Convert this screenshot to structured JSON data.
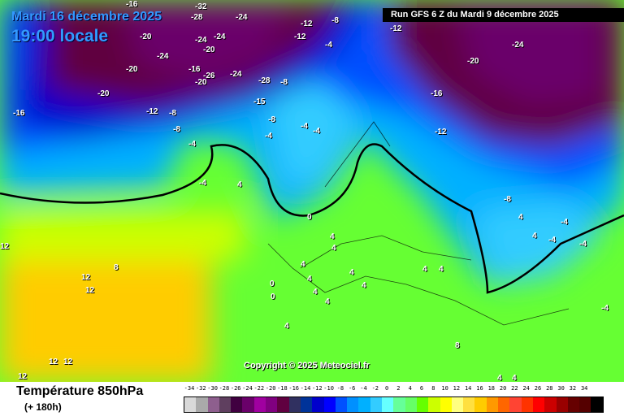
{
  "header": {
    "date": "Mardi 16 décembre 2025",
    "time": "19:00 locale",
    "run": "Run GFS 6 Z du Mardi 9 décembre 2025"
  },
  "copyright": "Copyright © 2025 Meteociel.fr",
  "footer": {
    "title": "Température 850hPa",
    "subtitle": "(+ 180h)"
  },
  "legend": {
    "ticks": [
      "-34",
      "-32",
      "-30",
      "-28",
      "-26",
      "-24",
      "-22",
      "-20",
      "-18",
      "-16",
      "-14",
      "-12",
      "-10",
      "-8",
      "-6",
      "-4",
      "-2",
      "0",
      "2",
      "4",
      "6",
      "8",
      "10",
      "12",
      "14",
      "16",
      "18",
      "20",
      "22",
      "24",
      "26",
      "28",
      "30",
      "32",
      "34"
    ],
    "colors": [
      "#d9d9d9",
      "#aaaaaa",
      "#8e5f8e",
      "#5f3f5f",
      "#400040",
      "#6a006a",
      "#a000a0",
      "#800080",
      "#600040",
      "#303060",
      "#003399",
      "#0000cc",
      "#0000ff",
      "#0050ff",
      "#0090ff",
      "#00b0ff",
      "#33ccff",
      "#66ffff",
      "#66ff99",
      "#66ff66",
      "#66ff00",
      "#ccff00",
      "#ffff00",
      "#ffff80",
      "#ffe040",
      "#ffcc00",
      "#ff9900",
      "#ff6600",
      "#ff4433",
      "#ff3300",
      "#ff0000",
      "#cc0000",
      "#990000",
      "#660000",
      "#550000",
      "#000000"
    ]
  },
  "isotherm_labels": [
    "-16",
    "-28",
    "-32",
    "-24",
    "-20",
    "-24",
    "-24",
    "-20",
    "-12",
    "-8",
    "-12",
    "-24",
    "-20",
    "-16",
    "-20",
    "-26",
    "-24",
    "-28",
    "-8",
    "-20",
    "-12",
    "-16",
    "-12",
    "-8",
    "-8",
    "-15",
    "-8",
    "-4",
    "-4",
    "-4",
    "-4",
    "-12",
    "-16",
    "-20",
    "-24",
    "-8",
    "-4",
    "-4",
    "4",
    "4",
    "4",
    "0",
    "0",
    "4",
    "4",
    "8",
    "12",
    "12",
    "12",
    "12",
    "12",
    "12",
    "4",
    "4",
    "4",
    "0",
    "4",
    "4",
    "4",
    "4",
    "8",
    "4",
    "4",
    "4",
    "4",
    "-4",
    "-4",
    "-4",
    "-4",
    "4",
    "4"
  ]
}
